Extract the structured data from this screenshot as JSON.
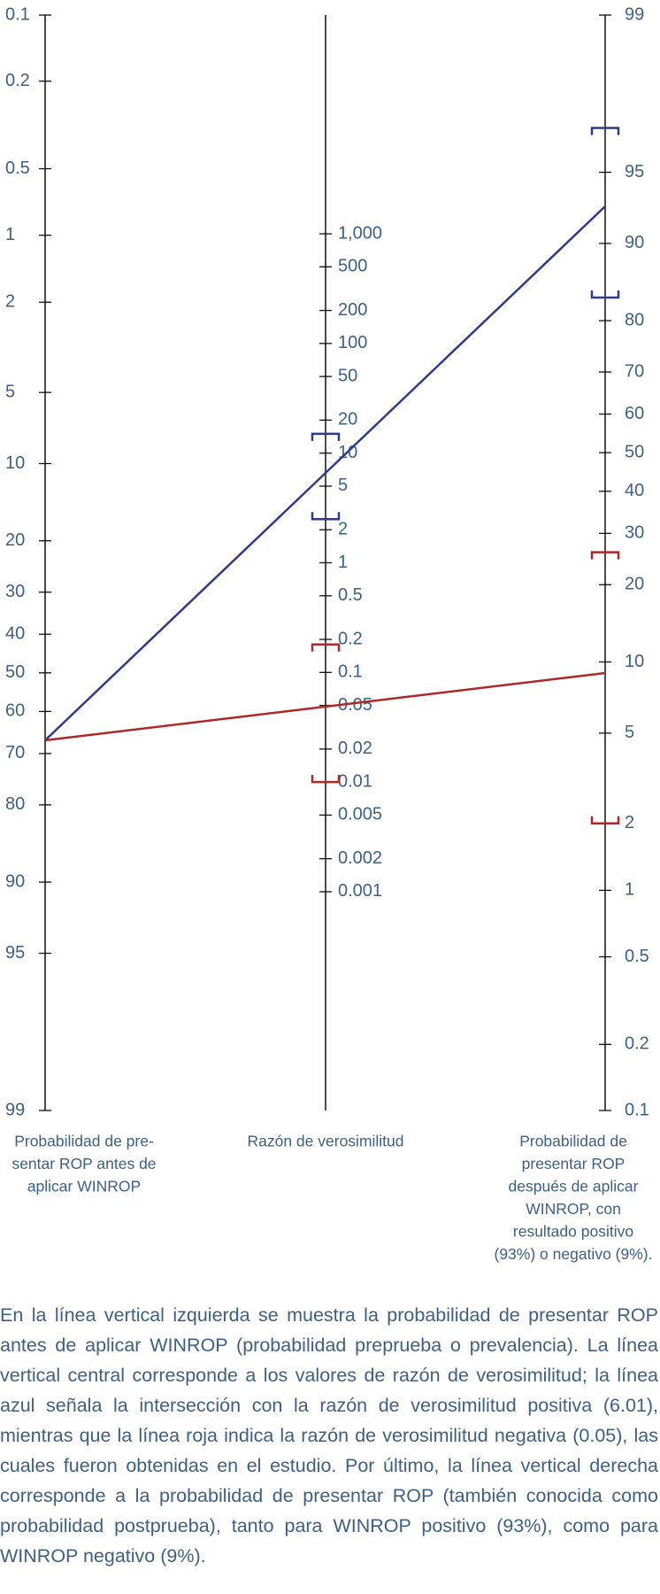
{
  "chart_data": {
    "type": "nomogram",
    "left_axis": {
      "title_lines": [
        "Probabilidad de pre-",
        "sentar ROP antes de",
        "aplicar WINROP"
      ],
      "ylim": [
        0.1,
        99
      ],
      "yticks": [
        0.1,
        0.2,
        0.5,
        1,
        2,
        5,
        10,
        20,
        30,
        40,
        50,
        60,
        70,
        80,
        90,
        95,
        99
      ]
    },
    "middle_axis": {
      "title": "Razón de verosimilitud",
      "yticks": [
        {
          "value": 1000,
          "label": "1,000"
        },
        500,
        200,
        100,
        50,
        20,
        10,
        5,
        2,
        1,
        0.5,
        0.2,
        0.1,
        0.05,
        0.02,
        0.01,
        0.005,
        0.002,
        0.001
      ]
    },
    "right_axis": {
      "title_lines": [
        "Probabilidad de",
        "presentar ROP",
        "después de aplicar",
        "WINROP, con",
        "resultado positivo",
        "(93%) o negativo (9%)."
      ],
      "ylim": [
        99,
        0.1
      ],
      "yticks": [
        99,
        95,
        90,
        80,
        70,
        60,
        50,
        40,
        30,
        20,
        10,
        5,
        2,
        1,
        0.5,
        0.2,
        0.1
      ]
    },
    "series": [
      {
        "color": "#2e3a8c",
        "pretest": 67,
        "posttest": 93,
        "lr_ci": [
          2.5,
          15
        ],
        "post_ci": [
          83.6,
          96.8
        ]
      },
      {
        "color": "#b0272a",
        "pretest": 67,
        "posttest": 9,
        "lr_ci": [
          0.01,
          0.18
        ],
        "post_ci": [
          2,
          26
        ]
      }
    ]
  },
  "caption": "En la línea vertical izquierda se muestra la probabilidad de presentar ROP antes de aplicar WINROP (probabilidad preprueba o prevalencia). La línea vertical central corresponde a los valores de razón de verosimilitud; la línea azul señala la intersección con la razón de verosimilitud positiva (6.01), mientras que la línea roja indica la razón de verosimilitud negativa (0.05), las cuales fueron obtenidas en el estudio. Por último, la línea vertical derecha corresponde a la probabilidad de presentar ROP (también conocida como probabilidad postprueba), tanto para WINROP positivo (93%), como para WINROP negativo (9%)."
}
